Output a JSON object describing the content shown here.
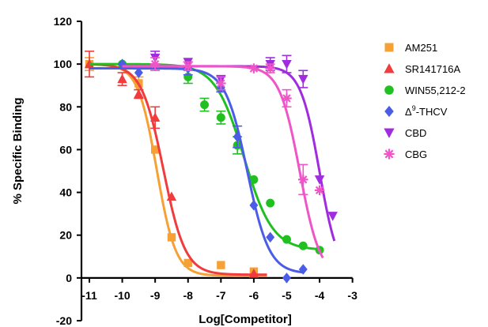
{
  "chart_data": {
    "type": "scatter",
    "xlabel": "Log[Competitor]",
    "ylabel": "% Specific Binding",
    "xlim": [
      -11,
      -3
    ],
    "ylim": [
      -20,
      120
    ],
    "x_ticks": [
      "-11",
      "-10",
      "-9",
      "-8",
      "-7",
      "-6",
      "-5",
      "-4",
      "-3"
    ],
    "y_ticks": [
      "-20",
      "0",
      "20",
      "40",
      "60",
      "80",
      "100",
      "120"
    ],
    "grid": false,
    "legend_position": "right",
    "series": [
      {
        "name": "AM251",
        "label_main": "AM251",
        "label_sup": "",
        "label_rest": "",
        "marker": "square",
        "color": "#F7A034",
        "fit": {
          "top": 100,
          "bottom": 1,
          "logEC50": -8.95,
          "hill": 1.5,
          "x_from": -11,
          "x_to": -5.6
        },
        "points": [
          [
            -11,
            100,
            3
          ],
          [
            -9.5,
            91,
            3
          ],
          [
            -9,
            60,
            0
          ],
          [
            -8.5,
            19,
            0
          ],
          [
            -8,
            7,
            0
          ],
          [
            -7,
            6,
            0
          ],
          [
            -6,
            3,
            0
          ]
        ]
      },
      {
        "name": "SR141716A",
        "label_main": "SR141716A",
        "label_sup": "",
        "label_rest": "",
        "marker": "triangle-up",
        "color": "#F03C3C",
        "fit": {
          "top": 100,
          "bottom": 1.5,
          "logEC50": -8.75,
          "hill": 1.3,
          "x_from": -11,
          "x_to": -5.6
        },
        "points": [
          [
            -11,
            100,
            6
          ],
          [
            -10,
            93,
            3
          ],
          [
            -9.5,
            86,
            2
          ],
          [
            -9,
            75,
            5
          ],
          [
            -8.5,
            38,
            0
          ],
          [
            -6,
            2,
            0
          ]
        ]
      },
      {
        "name": "WIN55,212-2",
        "label_main": "WIN55,212-2",
        "label_sup": "",
        "label_rest": "",
        "marker": "circle",
        "color": "#21C021",
        "fit": {
          "top": 100,
          "bottom": 13,
          "logEC50": -6.3,
          "hill": 1.0,
          "x_from": -11,
          "x_to": -4
        },
        "points": [
          [
            -10,
            100,
            0
          ],
          [
            -8,
            94,
            3
          ],
          [
            -7.5,
            81,
            3
          ],
          [
            -7,
            75,
            3
          ],
          [
            -6.5,
            62,
            4
          ],
          [
            -6,
            46,
            0
          ],
          [
            -5.5,
            35,
            0
          ],
          [
            -5,
            18,
            0
          ],
          [
            -4.5,
            15,
            0
          ],
          [
            -4,
            13,
            0
          ]
        ]
      },
      {
        "name": "Δ9-THCV",
        "label_main": "Δ",
        "label_sup": "9",
        "label_rest": "-THCV",
        "marker": "diamond",
        "color": "#4B5DE6",
        "fit": {
          "top": 98,
          "bottom": 2,
          "logEC50": -6.2,
          "hill": 1.3,
          "x_from": -11,
          "x_to": -4.5
        },
        "points": [
          [
            -10,
            100,
            0
          ],
          [
            -9.5,
            96,
            0
          ],
          [
            -8,
            98,
            3
          ],
          [
            -7,
            89,
            2
          ],
          [
            -6.5,
            66,
            5
          ],
          [
            -6,
            34,
            0
          ],
          [
            -5.5,
            19,
            0
          ],
          [
            -5,
            0,
            0
          ],
          [
            -4.5,
            4,
            0
          ]
        ]
      },
      {
        "name": "CBD",
        "label_main": "CBD",
        "label_sup": "",
        "label_rest": "",
        "marker": "triangle-down",
        "color": "#A02CE0",
        "fit": {
          "top": 99,
          "bottom": 0,
          "logEC50": -4.0,
          "hill": 1.5,
          "x_from": -10,
          "x_to": -3.55
        },
        "points": [
          [
            -9,
            103,
            3
          ],
          [
            -8,
            101,
            0
          ],
          [
            -7,
            93,
            0
          ],
          [
            -5.5,
            100,
            3
          ],
          [
            -5,
            100,
            4
          ],
          [
            -4.5,
            93,
            4
          ],
          [
            -4,
            46,
            0
          ],
          [
            -3.6,
            29,
            0
          ]
        ]
      },
      {
        "name": "CBG",
        "label_main": "CBG",
        "label_sup": "",
        "label_rest": "",
        "marker": "asterisk",
        "color": "#F055C8",
        "fit": {
          "top": 99,
          "bottom": 0,
          "logEC50": -4.6,
          "hill": 1.4,
          "x_from": -10,
          "x_to": -3.9
        },
        "points": [
          [
            -9,
            100,
            3
          ],
          [
            -8,
            99,
            2
          ],
          [
            -7,
            91,
            3
          ],
          [
            -6,
            98,
            0
          ],
          [
            -5.5,
            98,
            2
          ],
          [
            -5,
            84,
            4
          ],
          [
            -4.5,
            46,
            7
          ],
          [
            -4,
            41,
            0
          ]
        ]
      }
    ]
  }
}
